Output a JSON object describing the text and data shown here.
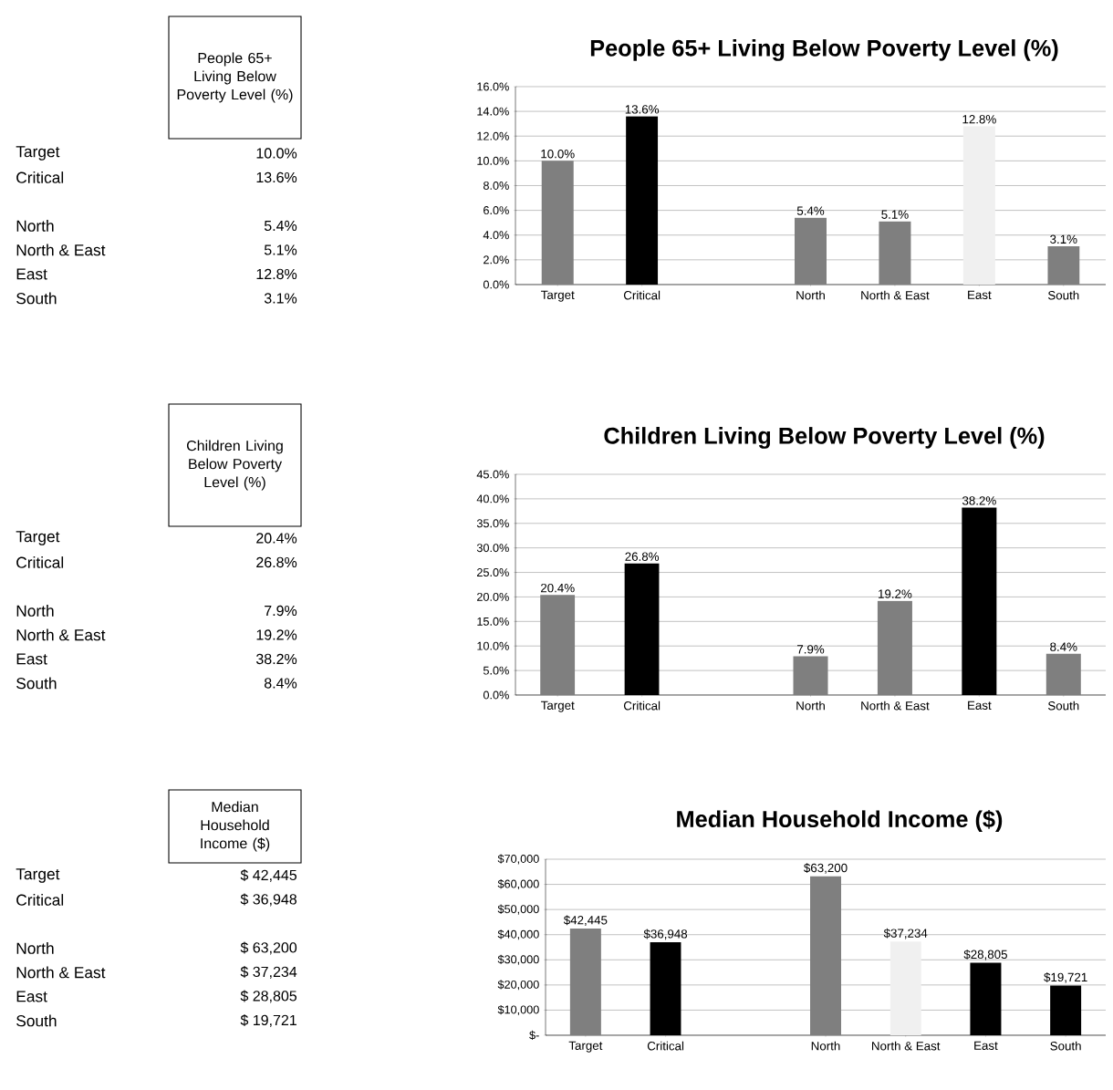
{
  "chart_data": [
    {
      "type": "other",
      "title": "People 65+ Living Below Poverty Level (%)",
      "categories": [
        "Target",
        "Critical",
        null,
        "North",
        "North & East",
        "East",
        "South"
      ],
      "value_labels": [
        "10.0%",
        "13.6%",
        null,
        "5.4%",
        "5.1%",
        "12.8%",
        "3.1%"
      ]
    },
    {
      "type": "bar",
      "title": "People 65+ Living Below Poverty Level (%)",
      "categories": [
        "Target",
        "Critical",
        null,
        "North",
        "North & East",
        "East",
        "South"
      ],
      "values": [
        10.0,
        13.6,
        null,
        5.4,
        5.1,
        12.8,
        3.1
      ],
      "colors": [
        "#7f7f7f",
        "#000000",
        "#7f7f7f",
        "#7f7f7f",
        "#7f7f7f",
        "#f0f0f0",
        "#7f7f7f"
      ],
      "value_labels": [
        "10.0%",
        "13.6%",
        null,
        "5.4%",
        "5.1%",
        "12.8%",
        "3.1%"
      ],
      "ylim": [
        0,
        16
      ],
      "yticks": [
        {
          "value": 0,
          "label": "0.0%"
        },
        {
          "value": 2,
          "label": "2.0%"
        },
        {
          "value": 4,
          "label": "4.0%"
        },
        {
          "value": 6,
          "label": "6.0%"
        },
        {
          "value": 8,
          "label": "8.0%"
        },
        {
          "value": 10,
          "label": "10.0%"
        },
        {
          "value": 12,
          "label": "12.0%"
        },
        {
          "value": 14,
          "label": "14.0%"
        },
        {
          "value": 16,
          "label": "16.0%"
        }
      ],
      "grid": "y"
    },
    {
      "type": "other",
      "title": "Children Living Below Poverty Level (%)",
      "categories": [
        "Target",
        "Critical",
        null,
        "North",
        "North & East",
        "East",
        "South"
      ],
      "value_labels": [
        "20.4%",
        "26.8%",
        null,
        "7.9%",
        "19.2%",
        "38.2%",
        "8.4%"
      ]
    },
    {
      "type": "bar",
      "title": "Children Living Below Poverty Level (%)",
      "categories": [
        "Target",
        "Critical",
        null,
        "North",
        "North & East",
        "East",
        "South"
      ],
      "values": [
        20.4,
        26.8,
        null,
        7.9,
        19.2,
        38.2,
        8.4
      ],
      "colors": [
        "#7f7f7f",
        "#000000",
        "#7f7f7f",
        "#7f7f7f",
        "#7f7f7f",
        "#000000",
        "#7f7f7f"
      ],
      "value_labels": [
        "20.4%",
        "26.8%",
        null,
        "7.9%",
        "19.2%",
        "38.2%",
        "8.4%"
      ],
      "ylim": [
        0,
        45
      ],
      "yticks": [
        {
          "value": 0,
          "label": "0.0%"
        },
        {
          "value": 5,
          "label": "5.0%"
        },
        {
          "value": 10,
          "label": "10.0%"
        },
        {
          "value": 15,
          "label": "15.0%"
        },
        {
          "value": 20,
          "label": "20.0%"
        },
        {
          "value": 25,
          "label": "25.0%"
        },
        {
          "value": 30,
          "label": "30.0%"
        },
        {
          "value": 35,
          "label": "35.0%"
        },
        {
          "value": 40,
          "label": "40.0%"
        },
        {
          "value": 45,
          "label": "45.0%"
        }
      ],
      "grid": "y"
    },
    {
      "type": "other",
      "title": "Median Household Income ($)",
      "categories": [
        "Target",
        "Critical",
        null,
        "North",
        "North & East",
        "East",
        "South"
      ],
      "value_labels": [
        "$ 42,445",
        "$ 36,948",
        null,
        "$ 63,200",
        "$ 37,234",
        "$ 28,805",
        "$ 19,721"
      ]
    },
    {
      "type": "bar",
      "title": "Median Household Income ($)",
      "categories": [
        "Target",
        "Critical",
        null,
        "North",
        "North & East",
        "East",
        "South"
      ],
      "values": [
        42445,
        36948,
        null,
        63200,
        37234,
        28805,
        19721
      ],
      "colors": [
        "#7f7f7f",
        "#000000",
        "#7f7f7f",
        "#7f7f7f",
        "#f0f0f0",
        "#000000",
        "#000000"
      ],
      "value_labels": [
        "$42,445",
        "$36,948",
        null,
        "$63,200",
        "$37,234",
        "$28,805",
        "$19,721"
      ],
      "ylim": [
        0,
        70000
      ],
      "yticks": [
        {
          "value": 0,
          "label": "$-"
        },
        {
          "value": 10000,
          "label": "$10,000"
        },
        {
          "value": 20000,
          "label": "$20,000"
        },
        {
          "value": 30000,
          "label": "$30,000"
        },
        {
          "value": 40000,
          "label": "$40,000"
        },
        {
          "value": 50000,
          "label": "$50,000"
        },
        {
          "value": 60000,
          "label": "$60,000"
        },
        {
          "value": 70000,
          "label": "$70,000"
        }
      ],
      "grid": "y"
    }
  ]
}
